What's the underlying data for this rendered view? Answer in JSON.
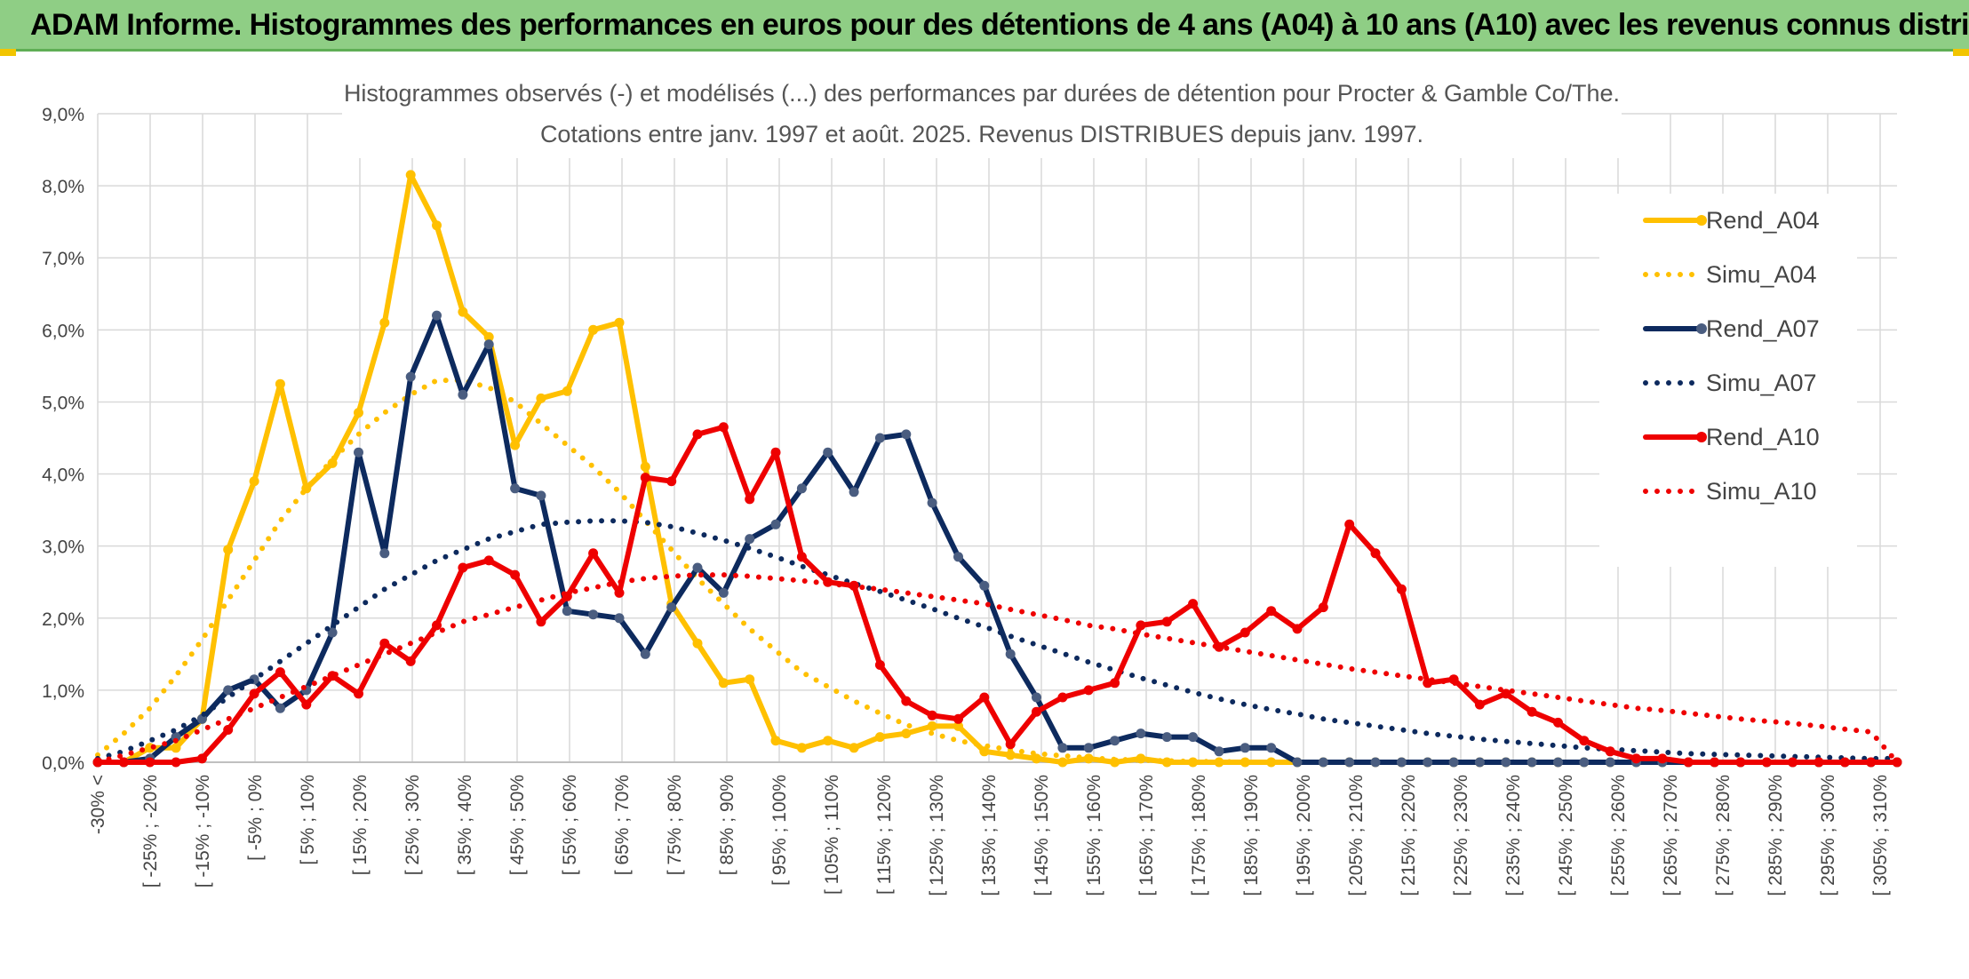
{
  "banner": {
    "title": "ADAM Informe. Histogrammes des performances en euros pour des détentions de 4 ans (A04) à 10 ans (A10) avec les revenus connus distribués"
  },
  "chart_data": {
    "type": "line",
    "title": "Histogrammes observés (-) et modélisés (...) des performances par durées de détention pour Procter & Gamble Co/The.",
    "subtitle": "Cotations entre janv. 1997 et août. 2025. Revenus DISTRIBUES depuis janv. 1997.",
    "ylim": [
      0,
      9
    ],
    "y_ticks": [
      "0,0%",
      "1,0%",
      "2,0%",
      "3,0%",
      "4,0%",
      "5,0%",
      "6,0%",
      "7,0%",
      "8,0%",
      "9,0%"
    ],
    "x_tick_labels": [
      "-30% <",
      "[ -25% ; -20%",
      "[ -15% ; -10%",
      "[ -5% ; 0%",
      "[ 5% ; 10%",
      "[ 15% ; 20%",
      "[ 25% ; 30%",
      "[ 35% ; 40%",
      "[ 45% ; 50%",
      "[ 55% ; 60%",
      "[ 65% ; 70%",
      "[ 75% ; 80%",
      "[ 85% ; 90%",
      "[ 95% ; 100%",
      "[ 105% ; 110%",
      "[ 115% ; 120%",
      "[ 125% ; 130%",
      "[ 135% ; 140%",
      "[ 145% ; 150%",
      "[ 155% ; 160%",
      "[ 165% ; 170%",
      "[ 175% ; 180%",
      "[ 185% ; 190%",
      "[ 195% ; 200%",
      "[ 205% ; 210%",
      "[ 215% ; 220%",
      "[ 225% ; 230%",
      "[ 235% ; 240%",
      "[ 245% ; 250%",
      "[ 255% ; 260%",
      "[ 265% ; 270%",
      "[ 275% ; 280%",
      "[ 285% ; 290%",
      "[ 295% ; 300%",
      "[ 305% ; 310%"
    ],
    "grid": true,
    "legend_position": "right",
    "series": [
      {
        "name": "Rend_A04",
        "style": "solid",
        "color": "#ffc000",
        "values": [
          0.0,
          0.0,
          0.2,
          0.2,
          0.6,
          2.95,
          3.9,
          5.25,
          3.8,
          4.15,
          4.85,
          6.1,
          8.15,
          7.45,
          6.25,
          5.9,
          4.4,
          5.05,
          5.15,
          6.0,
          6.1,
          4.1,
          2.2,
          1.65,
          1.1,
          1.15,
          0.3,
          0.2,
          0.3,
          0.2,
          0.35,
          0.4,
          0.5,
          0.5,
          0.15,
          0.1,
          0.05,
          0.0,
          0.05,
          0.0,
          0.05,
          0.0,
          0.0,
          0.0,
          0.0,
          0.0,
          0.0,
          0.0,
          0.0,
          0.0,
          0.0,
          0.0,
          0.0,
          0.0,
          0.0,
          0.0,
          0.0,
          0.0,
          0.0,
          0.0,
          0.0,
          0.0,
          0.0,
          0.0,
          0.0,
          0.0,
          0.0,
          0.0,
          0.0,
          0.0
        ]
      },
      {
        "name": "Simu_A04",
        "style": "dotted",
        "color": "#ffc000",
        "values": [
          0.1,
          0.4,
          0.75,
          1.2,
          1.7,
          2.25,
          2.8,
          3.35,
          3.8,
          4.2,
          4.55,
          4.85,
          5.1,
          5.3,
          5.3,
          5.2,
          5.0,
          4.7,
          4.4,
          4.1,
          3.75,
          3.35,
          2.95,
          2.55,
          2.2,
          1.85,
          1.55,
          1.25,
          1.05,
          0.85,
          0.68,
          0.52,
          0.4,
          0.3,
          0.23,
          0.17,
          0.12,
          0.09,
          0.06,
          0.04,
          0.03,
          0.02,
          0.01,
          0.01,
          0.0,
          0.0,
          0.0,
          0.0,
          0.0,
          0.0,
          0.0,
          0.0,
          0.0,
          0.0,
          0.0,
          0.0,
          0.0,
          0.0,
          0.0,
          0.0,
          0.0,
          0.0,
          0.0,
          0.0,
          0.0,
          0.0,
          0.0,
          0.0,
          0.0,
          0.0
        ]
      },
      {
        "name": "Rend_A07",
        "style": "solid",
        "color": "#0d2a5e",
        "values": [
          0.0,
          0.0,
          0.05,
          0.35,
          0.6,
          1.0,
          1.15,
          0.75,
          1.0,
          1.8,
          4.3,
          2.9,
          5.35,
          6.2,
          5.1,
          5.8,
          3.8,
          3.7,
          2.1,
          2.05,
          2.0,
          1.5,
          2.15,
          2.7,
          2.35,
          3.1,
          3.3,
          3.8,
          4.3,
          3.75,
          4.5,
          4.55,
          3.6,
          2.85,
          2.45,
          1.5,
          0.9,
          0.2,
          0.2,
          0.3,
          0.4,
          0.35,
          0.35,
          0.15,
          0.2,
          0.2,
          0.0,
          0.0,
          0.0,
          0.0,
          0.0,
          0.0,
          0.0,
          0.0,
          0.0,
          0.0,
          0.0,
          0.0,
          0.0,
          0.0,
          0.0,
          0.0,
          0.0,
          0.0,
          0.0,
          0.0,
          0.0,
          0.0,
          0.0,
          0.0
        ]
      },
      {
        "name": "Simu_A07",
        "style": "dotted",
        "color": "#0d2a5e",
        "values": [
          0.05,
          0.15,
          0.3,
          0.45,
          0.65,
          0.9,
          1.15,
          1.4,
          1.65,
          1.9,
          2.15,
          2.4,
          2.6,
          2.8,
          2.95,
          3.1,
          3.2,
          3.3,
          3.33,
          3.35,
          3.35,
          3.33,
          3.27,
          3.18,
          3.08,
          2.97,
          2.85,
          2.72,
          2.6,
          2.48,
          2.37,
          2.25,
          2.13,
          2.0,
          1.88,
          1.75,
          1.63,
          1.51,
          1.39,
          1.28,
          1.17,
          1.07,
          0.97,
          0.88,
          0.8,
          0.73,
          0.67,
          0.6,
          0.55,
          0.5,
          0.45,
          0.4,
          0.36,
          0.32,
          0.29,
          0.26,
          0.23,
          0.2,
          0.18,
          0.16,
          0.14,
          0.12,
          0.11,
          0.1,
          0.09,
          0.08,
          0.07,
          0.06,
          0.05,
          0.05
        ]
      },
      {
        "name": "Rend_A10",
        "style": "solid",
        "color": "#ee0000",
        "values": [
          0.0,
          0.0,
          0.0,
          0.0,
          0.05,
          0.45,
          0.95,
          1.25,
          0.8,
          1.2,
          0.95,
          1.65,
          1.4,
          1.9,
          2.7,
          2.8,
          2.6,
          1.95,
          2.3,
          2.9,
          2.35,
          3.95,
          3.9,
          4.55,
          4.65,
          3.65,
          4.3,
          2.85,
          2.5,
          2.45,
          1.35,
          0.85,
          0.65,
          0.6,
          0.9,
          0.25,
          0.7,
          0.9,
          1.0,
          1.1,
          1.9,
          1.95,
          2.2,
          1.6,
          1.8,
          2.1,
          1.85,
          2.15,
          3.3,
          2.9,
          2.4,
          1.1,
          1.15,
          0.8,
          0.95,
          0.7,
          0.55,
          0.3,
          0.15,
          0.05,
          0.05,
          0.0,
          0.0,
          0.0,
          0.0,
          0.0,
          0.0,
          0.0,
          0.0,
          0.0
        ]
      },
      {
        "name": "Simu_A10",
        "style": "dotted",
        "color": "#ee0000",
        "values": [
          0.0,
          0.1,
          0.2,
          0.3,
          0.45,
          0.6,
          0.75,
          0.9,
          1.05,
          1.2,
          1.35,
          1.5,
          1.65,
          1.8,
          1.95,
          2.05,
          2.15,
          2.25,
          2.35,
          2.42,
          2.5,
          2.55,
          2.58,
          2.6,
          2.6,
          2.58,
          2.55,
          2.52,
          2.48,
          2.44,
          2.4,
          2.35,
          2.3,
          2.25,
          2.2,
          2.12,
          2.05,
          1.98,
          1.9,
          1.85,
          1.78,
          1.72,
          1.66,
          1.6,
          1.54,
          1.48,
          1.42,
          1.36,
          1.3,
          1.25,
          1.2,
          1.15,
          1.1,
          1.05,
          1.0,
          0.95,
          0.9,
          0.85,
          0.8,
          0.75,
          0.72,
          0.68,
          0.64,
          0.6,
          0.57,
          0.54,
          0.5,
          0.46,
          0.42,
          0.0
        ]
      }
    ]
  }
}
